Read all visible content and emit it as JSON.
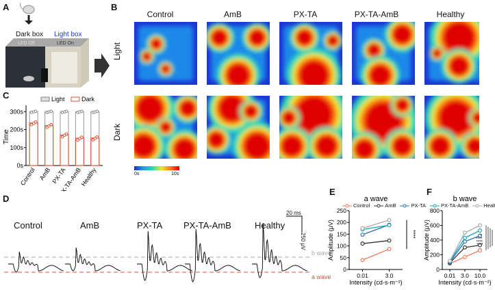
{
  "panels": {
    "A": "A",
    "B": "B",
    "C": "C",
    "D": "D",
    "E": "E",
    "F": "F"
  },
  "panel_a": {
    "dark_box": "Dark box",
    "light_box": "Light box",
    "led_off": "LED Off",
    "led_on": "LED On"
  },
  "panel_b": {
    "groups": [
      "Control",
      "AmB",
      "PX-TA",
      "PX-TA-AmB",
      "Healthy"
    ],
    "rows": [
      "Light",
      "Dark"
    ],
    "scale_min": "0s",
    "scale_max": "10s"
  },
  "panel_c": {
    "legend_light": "Light",
    "legend_dark": "Dark",
    "ylabel": "Time",
    "yticks": [
      "0s",
      "100s",
      "200s",
      "300s"
    ],
    "groups": [
      "Control",
      "AmB",
      "PX-TA",
      "PX-TA-AmB",
      "Healthy"
    ]
  },
  "chart_data": [
    {
      "type": "bar",
      "title": "",
      "categories": [
        "Control",
        "AmB",
        "PX-TA",
        "PX-TA-AmB",
        "Healthy"
      ],
      "series": [
        {
          "name": "Light",
          "values": [
            300,
            300,
            300,
            300,
            300
          ]
        },
        {
          "name": "Dark",
          "values": [
            237,
            222,
            170,
            152,
            153
          ]
        }
      ],
      "ylabel": "Time",
      "ylim": [
        0,
        320
      ]
    },
    {
      "type": "line",
      "title": "a wave",
      "x": [
        "0.01",
        "3.0"
      ],
      "series": [
        {
          "name": "Control",
          "values": [
            40,
            87
          ]
        },
        {
          "name": "AmB",
          "values": [
            110,
            123
          ]
        },
        {
          "name": "PX-TA",
          "values": [
            148,
            190
          ]
        },
        {
          "name": "PX-TA-AmB",
          "values": [
            170,
            188
          ]
        },
        {
          "name": "Healthy",
          "values": [
            175,
            210
          ]
        }
      ],
      "xlabel": "Intensity (cd·s·m⁻²)",
      "ylabel": "Amplitude (μV)",
      "ylim": [
        0,
        250
      ],
      "yticks": [
        "0",
        "50",
        "100",
        "150",
        "200",
        "250"
      ],
      "significance": "****"
    },
    {
      "type": "line",
      "title": "b wave",
      "x": [
        "0.01",
        "3.0",
        "10.0"
      ],
      "series": [
        {
          "name": "Control",
          "values": [
            80,
            170,
            260
          ]
        },
        {
          "name": "AmB",
          "values": [
            90,
            300,
            330
          ]
        },
        {
          "name": "PX-TA",
          "values": [
            100,
            380,
            460
          ]
        },
        {
          "name": "PX-TA-AmB",
          "values": [
            110,
            430,
            530
          ]
        },
        {
          "name": "Healthy",
          "values": [
            115,
            500,
            600
          ]
        }
      ],
      "xlabel": "Intensity (cd·s·m⁻²)",
      "ylabel": "Amplitude (μV)",
      "ylim": [
        0,
        800
      ],
      "yticks": [
        "0",
        "200",
        "400",
        "600",
        "800"
      ],
      "significance": [
        "*",
        "****",
        "****",
        "****"
      ]
    }
  ],
  "panel_d": {
    "groups": [
      "Control",
      "AmB",
      "PX-TA",
      "PX-TA-AmB",
      "Healthy"
    ],
    "scale_time": "20 ms",
    "scale_amp": "250 μV",
    "b_wave": "b wave",
    "a_wave": "a wave"
  },
  "legend_e": [
    "Control",
    "AmB",
    "PX-TA",
    "PX-TA-AmB",
    "Healthy"
  ],
  "colors": {
    "Control": "#f07a5a",
    "AmB": "#333333",
    "PX-TA": "#2e6fb4",
    "PX-TA-AmB": "#19a6b4",
    "Healthy": "#aaaaaa"
  }
}
